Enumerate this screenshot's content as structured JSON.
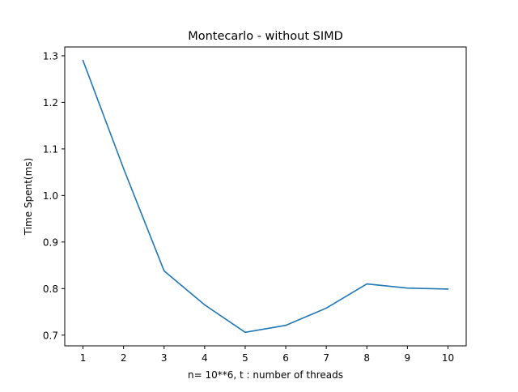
{
  "chart_data": {
    "type": "line",
    "title": "Montecarlo - without SIMD",
    "xlabel": "n= 10**6, t : number of threads",
    "ylabel": "Time Spent(ms)",
    "x": [
      1,
      2,
      3,
      4,
      5,
      6,
      7,
      8,
      9,
      10
    ],
    "series": [
      {
        "values": [
          1.29,
          1.058,
          0.838,
          0.765,
          0.706,
          0.721,
          0.758,
          0.81,
          0.801,
          0.799
        ],
        "color": "#1f77b4"
      }
    ],
    "xlim": [
      0.55,
      10.45
    ],
    "ylim": [
      0.677,
      1.319
    ],
    "xticks": [
      "1",
      "2",
      "3",
      "4",
      "5",
      "6",
      "7",
      "8",
      "9",
      "10"
    ],
    "yticks": [
      "0.7",
      "0.8",
      "0.9",
      "1.0",
      "1.1",
      "1.2",
      "1.3"
    ],
    "grid": false,
    "legend": false
  }
}
